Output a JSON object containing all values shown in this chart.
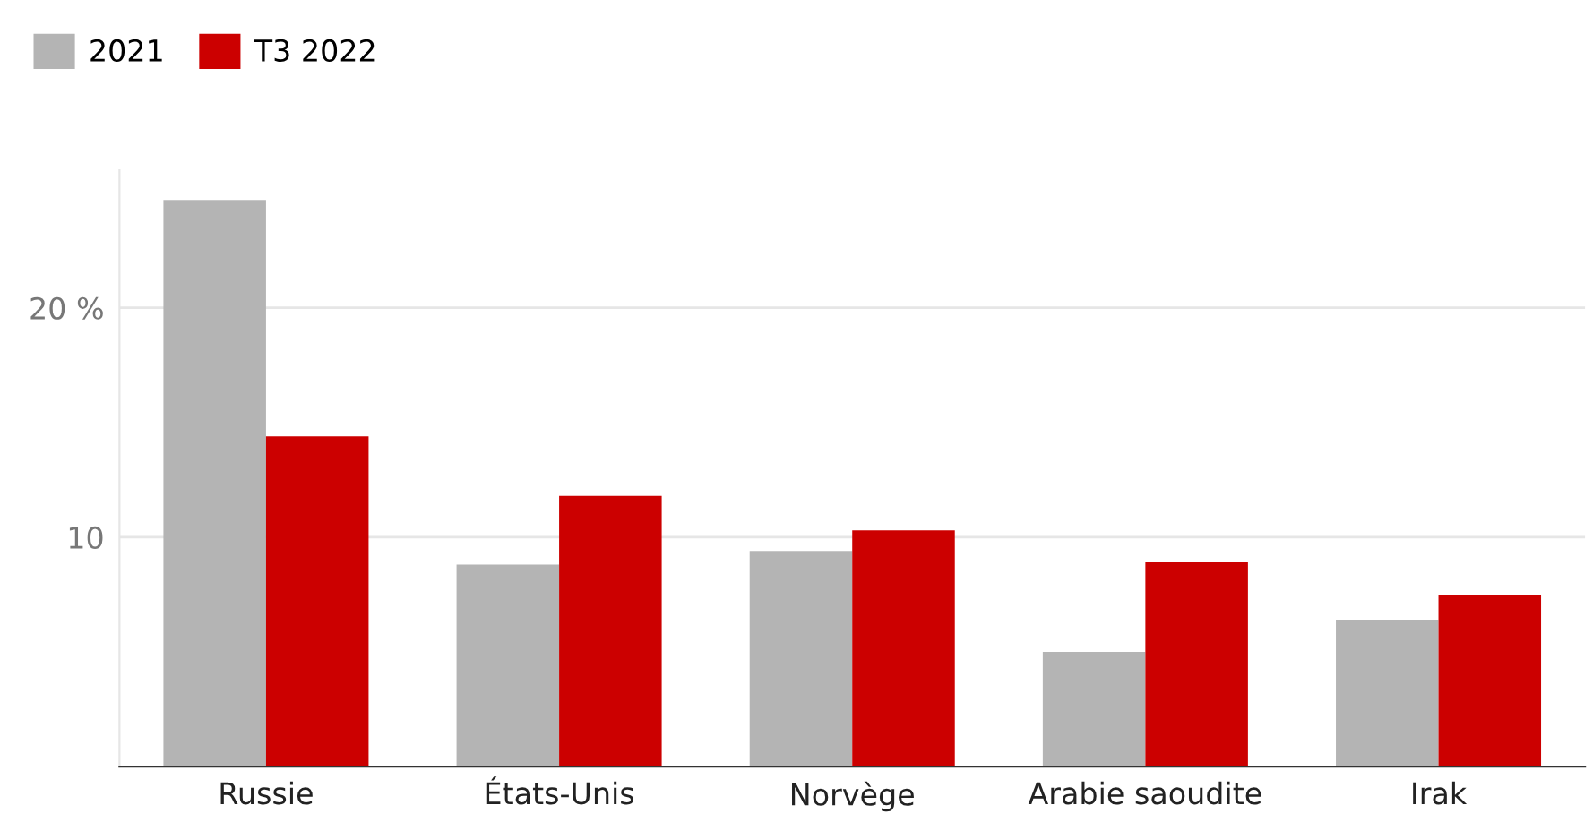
{
  "chart_data": {
    "type": "bar",
    "categories": [
      "Russie",
      "États-Unis",
      "Norvège",
      "Arabie saoudite",
      "Irak"
    ],
    "series": [
      {
        "name": "2021",
        "color": "#b4b4b4",
        "values": [
          24.7,
          8.8,
          9.4,
          5.0,
          6.4
        ]
      },
      {
        "name": "T3 2022",
        "color": "#cc0000",
        "values": [
          14.4,
          11.8,
          10.3,
          8.9,
          7.5
        ]
      }
    ],
    "ylim": [
      0,
      26
    ],
    "yticks": [
      {
        "value": 10,
        "label": "10"
      },
      {
        "value": 20,
        "label": "20 %"
      }
    ],
    "grid": "y",
    "legend": "top left"
  }
}
